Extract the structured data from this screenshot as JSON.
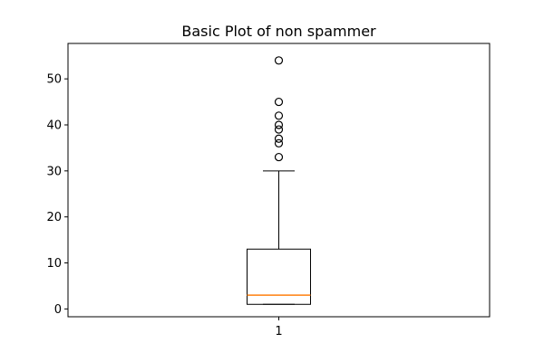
{
  "chart_data": {
    "type": "boxplot",
    "title": "Basic Plot of non spammer",
    "xlabel": "",
    "ylabel": "",
    "categories": [
      "1"
    ],
    "ylim": [
      -1.7,
      57.7
    ],
    "yticks": [
      0,
      10,
      20,
      30,
      40,
      50
    ],
    "ytick_labels": [
      "0",
      "10",
      "20",
      "30",
      "40",
      "50"
    ],
    "grid": false,
    "boxes": [
      {
        "label": "1",
        "whisker_low": 1,
        "q1": 1,
        "median": 3,
        "q3": 13,
        "whisker_high": 30,
        "outliers": [
          33,
          36,
          37,
          39,
          40,
          42,
          45,
          54
        ]
      }
    ],
    "colors": {
      "box": "#000000",
      "median": "#ff7f0e",
      "outlier_edge": "#000000"
    }
  }
}
